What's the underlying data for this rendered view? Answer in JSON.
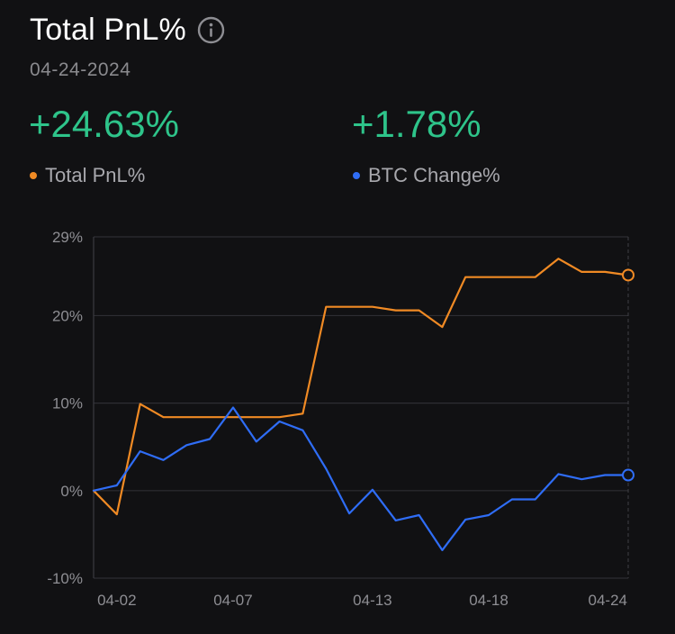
{
  "header": {
    "title": "Total PnL%",
    "date": "04-24-2024",
    "info_icon": "info-circle-icon"
  },
  "stats": [
    {
      "value": "+24.63%",
      "label": "Total PnL%",
      "color": "#f08a24"
    },
    {
      "value": "+1.78%",
      "label": "BTC Change%",
      "color": "#2f6df6"
    }
  ],
  "colors": {
    "positive": "#2ec48a",
    "pnl_line": "#f08a24",
    "btc_line": "#2f6df6",
    "background": "#111113",
    "grid": "#2e2e33"
  },
  "chart_data": {
    "type": "line",
    "x": [
      "04-01",
      "04-02",
      "04-03",
      "04-04",
      "04-05",
      "04-06",
      "04-07",
      "04-08",
      "04-09",
      "04-10",
      "04-11",
      "04-12",
      "04-13",
      "04-14",
      "04-15",
      "04-16",
      "04-17",
      "04-18",
      "04-19",
      "04-20",
      "04-21",
      "04-22",
      "04-23",
      "04-24"
    ],
    "x_tick_labels": [
      "04-02",
      "04-07",
      "04-13",
      "04-18",
      "04-24"
    ],
    "ylim": [
      -10,
      29
    ],
    "y_ticks": [
      29,
      20,
      10,
      0,
      -10
    ],
    "y_tick_labels": [
      "29%",
      "20%",
      "10%",
      "0%",
      "-10%"
    ],
    "grid": true,
    "series": [
      {
        "name": "Total PnL%",
        "values": [
          0,
          -2.7,
          9.9,
          8.4,
          8.4,
          8.4,
          8.4,
          8.4,
          8.4,
          8.8,
          21.0,
          21.0,
          21.0,
          20.6,
          20.6,
          18.7,
          24.4,
          24.4,
          24.4,
          24.4,
          26.5,
          25.0,
          25.0,
          24.63
        ]
      },
      {
        "name": "BTC Change%",
        "values": [
          0,
          0.6,
          4.5,
          3.5,
          5.2,
          5.9,
          9.5,
          5.6,
          7.9,
          6.9,
          2.5,
          -2.6,
          0.1,
          -3.4,
          -2.8,
          -6.8,
          -3.3,
          -2.8,
          -1.0,
          -1.0,
          1.9,
          1.3,
          1.78,
          1.78
        ]
      }
    ]
  }
}
